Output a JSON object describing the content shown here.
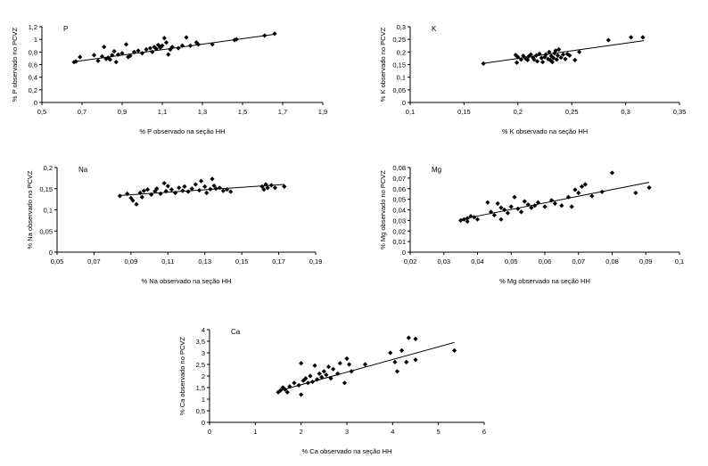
{
  "chart_data": [
    {
      "type": "scatter",
      "panel_label": "P",
      "xlabel": "% P observado na seção HH",
      "ylabel": "% P observado no PCVZ",
      "xlim": [
        0.5,
        1.9
      ],
      "ylim": [
        0,
        1.2
      ],
      "xticks": [
        0.5,
        0.7,
        0.9,
        1.1,
        1.3,
        1.5,
        1.7,
        1.9
      ],
      "yticks": [
        0,
        0.2,
        0.4,
        0.6,
        0.8,
        1,
        1.2
      ],
      "xtick_labels": [
        "0,5",
        "0,7",
        "0,9",
        "1,1",
        "1,3",
        "1,5",
        "1,7",
        "1,9"
      ],
      "ytick_labels": [
        "0",
        "0,2",
        "0,4",
        "0,6",
        "0,8",
        "1",
        "1,2"
      ],
      "trendline": [
        [
          0.67,
          0.65
        ],
        [
          1.66,
          1.08
        ]
      ],
      "points": [
        [
          0.66,
          0.64
        ],
        [
          0.67,
          0.65
        ],
        [
          0.69,
          0.72
        ],
        [
          0.76,
          0.75
        ],
        [
          0.78,
          0.66
        ],
        [
          0.8,
          0.73
        ],
        [
          0.81,
          0.88
        ],
        [
          0.82,
          0.69
        ],
        [
          0.83,
          0.71
        ],
        [
          0.84,
          0.68
        ],
        [
          0.85,
          0.75
        ],
        [
          0.86,
          0.81
        ],
        [
          0.87,
          0.64
        ],
        [
          0.88,
          0.76
        ],
        [
          0.9,
          0.78
        ],
        [
          0.92,
          0.92
        ],
        [
          0.93,
          0.72
        ],
        [
          0.94,
          0.74
        ],
        [
          0.96,
          0.8
        ],
        [
          0.98,
          0.82
        ],
        [
          1.0,
          0.78
        ],
        [
          1.02,
          0.84
        ],
        [
          1.04,
          0.86
        ],
        [
          1.05,
          0.8
        ],
        [
          1.06,
          0.88
        ],
        [
          1.07,
          0.85
        ],
        [
          1.08,
          0.91
        ],
        [
          1.09,
          0.87
        ],
        [
          1.1,
          0.9
        ],
        [
          1.11,
          1.02
        ],
        [
          1.12,
          0.95
        ],
        [
          1.13,
          0.76
        ],
        [
          1.14,
          0.84
        ],
        [
          1.15,
          0.88
        ],
        [
          1.18,
          0.86
        ],
        [
          1.2,
          0.9
        ],
        [
          1.22,
          1.03
        ],
        [
          1.24,
          0.9
        ],
        [
          1.27,
          0.95
        ],
        [
          1.28,
          0.92
        ],
        [
          1.35,
          0.92
        ],
        [
          1.46,
          0.99
        ],
        [
          1.47,
          1.0
        ],
        [
          1.61,
          1.06
        ],
        [
          1.66,
          1.09
        ]
      ]
    },
    {
      "type": "scatter",
      "panel_label": "K",
      "xlabel": "% K observado na seção HH",
      "ylabel": "% K observado no PCVZ",
      "xlim": [
        0.1,
        0.35
      ],
      "ylim": [
        0,
        0.3
      ],
      "xticks": [
        0.1,
        0.15,
        0.2,
        0.25,
        0.3,
        0.35
      ],
      "yticks": [
        0,
        0.05,
        0.1,
        0.15,
        0.2,
        0.25,
        0.3
      ],
      "xtick_labels": [
        "0,1",
        "0,15",
        "0,2",
        "0,25",
        "0,3",
        "0,35"
      ],
      "ytick_labels": [
        "0",
        "0,05",
        "0,1",
        "0,15",
        "0,2",
        "0,25",
        "0,3"
      ],
      "trendline": [
        [
          0.168,
          0.155
        ],
        [
          0.317,
          0.245
        ]
      ],
      "points": [
        [
          0.168,
          0.154
        ],
        [
          0.198,
          0.188
        ],
        [
          0.199,
          0.158
        ],
        [
          0.2,
          0.18
        ],
        [
          0.203,
          0.17
        ],
        [
          0.205,
          0.185
        ],
        [
          0.207,
          0.175
        ],
        [
          0.209,
          0.168
        ],
        [
          0.21,
          0.182
        ],
        [
          0.212,
          0.19
        ],
        [
          0.214,
          0.178
        ],
        [
          0.215,
          0.17
        ],
        [
          0.217,
          0.186
        ],
        [
          0.218,
          0.163
        ],
        [
          0.22,
          0.193
        ],
        [
          0.222,
          0.176
        ],
        [
          0.223,
          0.16
        ],
        [
          0.225,
          0.18
        ],
        [
          0.226,
          0.19
        ],
        [
          0.228,
          0.172
        ],
        [
          0.229,
          0.2
        ],
        [
          0.23,
          0.168
        ],
        [
          0.231,
          0.184
        ],
        [
          0.232,
          0.16
        ],
        [
          0.233,
          0.176
        ],
        [
          0.234,
          0.195
        ],
        [
          0.235,
          0.205
        ],
        [
          0.236,
          0.17
        ],
        [
          0.237,
          0.186
        ],
        [
          0.238,
          0.21
        ],
        [
          0.24,
          0.178
        ],
        [
          0.242,
          0.19
        ],
        [
          0.244,
          0.172
        ],
        [
          0.246,
          0.192
        ],
        [
          0.248,
          0.186
        ],
        [
          0.253,
          0.168
        ],
        [
          0.257,
          0.2
        ],
        [
          0.284,
          0.247
        ],
        [
          0.305,
          0.258
        ],
        [
          0.316,
          0.258
        ]
      ]
    },
    {
      "type": "scatter",
      "panel_label": "Na",
      "xlabel": "% Na observado na seção HH",
      "ylabel": "% Na observado no PCVZ",
      "xlim": [
        0.05,
        0.19
      ],
      "ylim": [
        0,
        0.2
      ],
      "xticks": [
        0.05,
        0.07,
        0.09,
        0.11,
        0.13,
        0.15,
        0.17,
        0.19
      ],
      "yticks": [
        0,
        0.05,
        0.1,
        0.15,
        0.2
      ],
      "xtick_labels": [
        "0,05",
        "0,07",
        "0,09",
        "0,11",
        "0,13",
        "0,15",
        "0,17",
        "0,19"
      ],
      "ytick_labels": [
        "0",
        "0,05",
        "0,1",
        "0,15",
        "0,2"
      ],
      "trendline": [
        [
          0.084,
          0.134
        ],
        [
          0.173,
          0.16
        ]
      ],
      "points": [
        [
          0.084,
          0.133
        ],
        [
          0.088,
          0.138
        ],
        [
          0.09,
          0.128
        ],
        [
          0.091,
          0.122
        ],
        [
          0.093,
          0.113
        ],
        [
          0.095,
          0.14
        ],
        [
          0.096,
          0.13
        ],
        [
          0.097,
          0.145
        ],
        [
          0.099,
          0.148
        ],
        [
          0.101,
          0.136
        ],
        [
          0.103,
          0.144
        ],
        [
          0.104,
          0.15
        ],
        [
          0.106,
          0.138
        ],
        [
          0.108,
          0.163
        ],
        [
          0.109,
          0.144
        ],
        [
          0.11,
          0.156
        ],
        [
          0.112,
          0.148
        ],
        [
          0.114,
          0.14
        ],
        [
          0.116,
          0.152
        ],
        [
          0.118,
          0.145
        ],
        [
          0.119,
          0.155
        ],
        [
          0.121,
          0.143
        ],
        [
          0.123,
          0.15
        ],
        [
          0.125,
          0.16
        ],
        [
          0.127,
          0.146
        ],
        [
          0.128,
          0.168
        ],
        [
          0.13,
          0.155
        ],
        [
          0.131,
          0.14
        ],
        [
          0.133,
          0.149
        ],
        [
          0.134,
          0.173
        ],
        [
          0.135,
          0.157
        ],
        [
          0.136,
          0.15
        ],
        [
          0.138,
          0.152
        ],
        [
          0.14,
          0.145
        ],
        [
          0.142,
          0.148
        ],
        [
          0.144,
          0.143
        ],
        [
          0.161,
          0.155
        ],
        [
          0.162,
          0.148
        ],
        [
          0.163,
          0.16
        ],
        [
          0.164,
          0.152
        ],
        [
          0.166,
          0.158
        ],
        [
          0.168,
          0.152
        ],
        [
          0.173,
          0.155
        ]
      ]
    },
    {
      "type": "scatter",
      "panel_label": "Mg",
      "xlabel": "% Mg observado na seção HH",
      "ylabel": "% Mg observado no PCVZ",
      "xlim": [
        0.02,
        0.1
      ],
      "ylim": [
        0,
        0.08
      ],
      "xticks": [
        0.02,
        0.03,
        0.04,
        0.05,
        0.06,
        0.07,
        0.08,
        0.09,
        0.1
      ],
      "yticks": [
        0,
        0.01,
        0.02,
        0.03,
        0.04,
        0.05,
        0.06,
        0.07,
        0.08
      ],
      "xtick_labels": [
        "0,02",
        "0,03",
        "0,04",
        "0,05",
        "0,06",
        "0,07",
        "0,08",
        "0,09",
        "0,1"
      ],
      "ytick_labels": [
        "0",
        "0,01",
        "0,02",
        "0,03",
        "0,04",
        "0,05",
        "0,06",
        "0,07",
        "0,08"
      ],
      "trendline": [
        [
          0.035,
          0.031
        ],
        [
          0.091,
          0.066
        ]
      ],
      "points": [
        [
          0.035,
          0.03
        ],
        [
          0.036,
          0.031
        ],
        [
          0.037,
          0.032
        ],
        [
          0.037,
          0.029
        ],
        [
          0.038,
          0.034
        ],
        [
          0.039,
          0.033
        ],
        [
          0.04,
          0.031
        ],
        [
          0.043,
          0.047
        ],
        [
          0.044,
          0.038
        ],
        [
          0.045,
          0.035
        ],
        [
          0.046,
          0.046
        ],
        [
          0.047,
          0.042
        ],
        [
          0.047,
          0.031
        ],
        [
          0.048,
          0.04
        ],
        [
          0.049,
          0.037
        ],
        [
          0.05,
          0.043
        ],
        [
          0.051,
          0.052
        ],
        [
          0.052,
          0.041
        ],
        [
          0.053,
          0.038
        ],
        [
          0.054,
          0.048
        ],
        [
          0.055,
          0.045
        ],
        [
          0.056,
          0.042
        ],
        [
          0.057,
          0.044
        ],
        [
          0.058,
          0.047
        ],
        [
          0.06,
          0.043
        ],
        [
          0.062,
          0.049
        ],
        [
          0.063,
          0.046
        ],
        [
          0.065,
          0.044
        ],
        [
          0.067,
          0.052
        ],
        [
          0.068,
          0.043
        ],
        [
          0.069,
          0.059
        ],
        [
          0.07,
          0.056
        ],
        [
          0.071,
          0.062
        ],
        [
          0.072,
          0.064
        ],
        [
          0.074,
          0.053
        ],
        [
          0.077,
          0.057
        ],
        [
          0.08,
          0.075
        ],
        [
          0.087,
          0.056
        ],
        [
          0.091,
          0.061
        ]
      ]
    },
    {
      "type": "scatter",
      "panel_label": "Ca",
      "xlabel": "% Ca observado na seção HH",
      "ylabel": "% Ca observado no PCVZ",
      "xlim": [
        0,
        6
      ],
      "ylim": [
        0,
        4
      ],
      "xticks": [
        0,
        1,
        2,
        3,
        4,
        5,
        6
      ],
      "yticks": [
        0,
        0.5,
        1,
        1.5,
        2,
        2.5,
        3,
        3.5,
        4
      ],
      "xtick_labels": [
        "0",
        "1",
        "2",
        "3",
        "4",
        "5",
        "6"
      ],
      "ytick_labels": [
        "0",
        "0,5",
        "1",
        "1,5",
        "2",
        "2,5",
        "3",
        "3,5",
        "4"
      ],
      "trendline": [
        [
          1.5,
          1.35
        ],
        [
          5.35,
          3.45
        ]
      ],
      "points": [
        [
          1.5,
          1.3
        ],
        [
          1.55,
          1.38
        ],
        [
          1.6,
          1.5
        ],
        [
          1.65,
          1.42
        ],
        [
          1.7,
          1.3
        ],
        [
          1.75,
          1.55
        ],
        [
          1.85,
          1.7
        ],
        [
          1.95,
          1.6
        ],
        [
          2.0,
          2.55
        ],
        [
          2.0,
          1.2
        ],
        [
          2.05,
          1.8
        ],
        [
          2.1,
          1.9
        ],
        [
          2.15,
          1.7
        ],
        [
          2.2,
          2.0
        ],
        [
          2.25,
          1.75
        ],
        [
          2.3,
          2.45
        ],
        [
          2.35,
          1.85
        ],
        [
          2.4,
          2.1
        ],
        [
          2.45,
          1.95
        ],
        [
          2.5,
          2.2
        ],
        [
          2.55,
          2.05
        ],
        [
          2.6,
          2.4
        ],
        [
          2.65,
          1.9
        ],
        [
          2.7,
          2.3
        ],
        [
          2.8,
          2.1
        ],
        [
          2.85,
          2.55
        ],
        [
          2.95,
          1.7
        ],
        [
          3.0,
          2.75
        ],
        [
          3.05,
          2.5
        ],
        [
          3.1,
          2.2
        ],
        [
          3.4,
          2.5
        ],
        [
          3.95,
          3.0
        ],
        [
          4.05,
          2.6
        ],
        [
          4.1,
          2.2
        ],
        [
          4.2,
          3.1
        ],
        [
          4.3,
          2.6
        ],
        [
          4.35,
          3.65
        ],
        [
          4.5,
          3.6
        ],
        [
          4.5,
          2.7
        ],
        [
          5.35,
          3.1
        ]
      ]
    }
  ]
}
